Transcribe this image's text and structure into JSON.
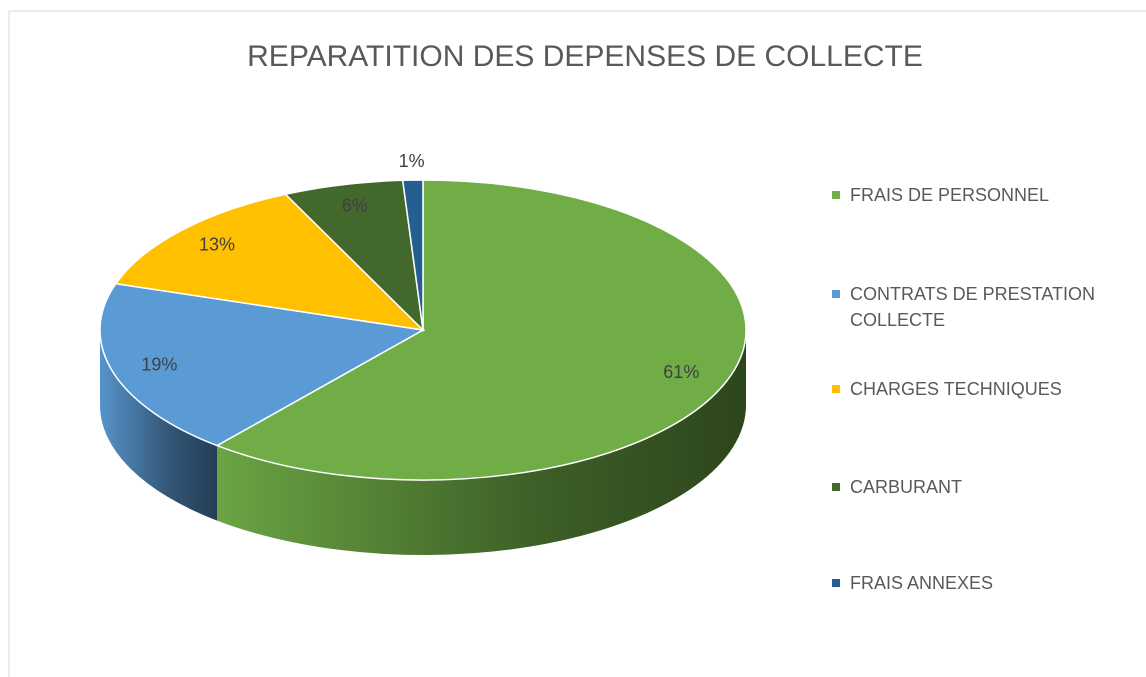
{
  "chart_data": {
    "type": "pie3d",
    "title": "REPARATITION DES DEPENSES DE COLLECTE",
    "categories": [
      "FRAIS DE PERSONNEL",
      "CONTRATS DE PRESTATION COLLECTE",
      "CHARGES TECHNIQUES",
      "CARBURANT",
      "FRAIS ANNEXES"
    ],
    "values": [
      61,
      19,
      13,
      6,
      1
    ],
    "value_labels": [
      "61%",
      "19%",
      "13%",
      "6%",
      "1%"
    ],
    "colors": [
      "#70ad47",
      "#5b9bd5",
      "#ffc000",
      "#43682b",
      "#255e91"
    ],
    "legend": "right"
  }
}
